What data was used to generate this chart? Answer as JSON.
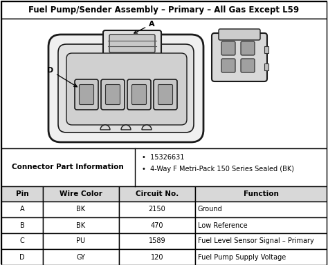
{
  "title": "Fuel Pump/Sender Assembly – Primary – All Gas Except L59",
  "connector_label": "Connector Part Information",
  "connector_info": [
    "15326631",
    "4-Way F Metri-Pack 150 Series Sealed (BK)"
  ],
  "table_headers": [
    "Pin",
    "Wire Color",
    "Circuit No.",
    "Function"
  ],
  "table_rows": [
    [
      "A",
      "BK",
      "2150",
      "Ground"
    ],
    [
      "B",
      "BK",
      "470",
      "Low Reference"
    ],
    [
      "C",
      "PU",
      "1589",
      "Fuel Level Sensor Signal – Primary"
    ],
    [
      "D",
      "GY",
      "120",
      "Fuel Pump Supply Voltage"
    ]
  ],
  "bg_color": "#ffffff",
  "border_color": "#000000",
  "fig_width": 4.74,
  "fig_height": 3.84,
  "dpi": 100
}
